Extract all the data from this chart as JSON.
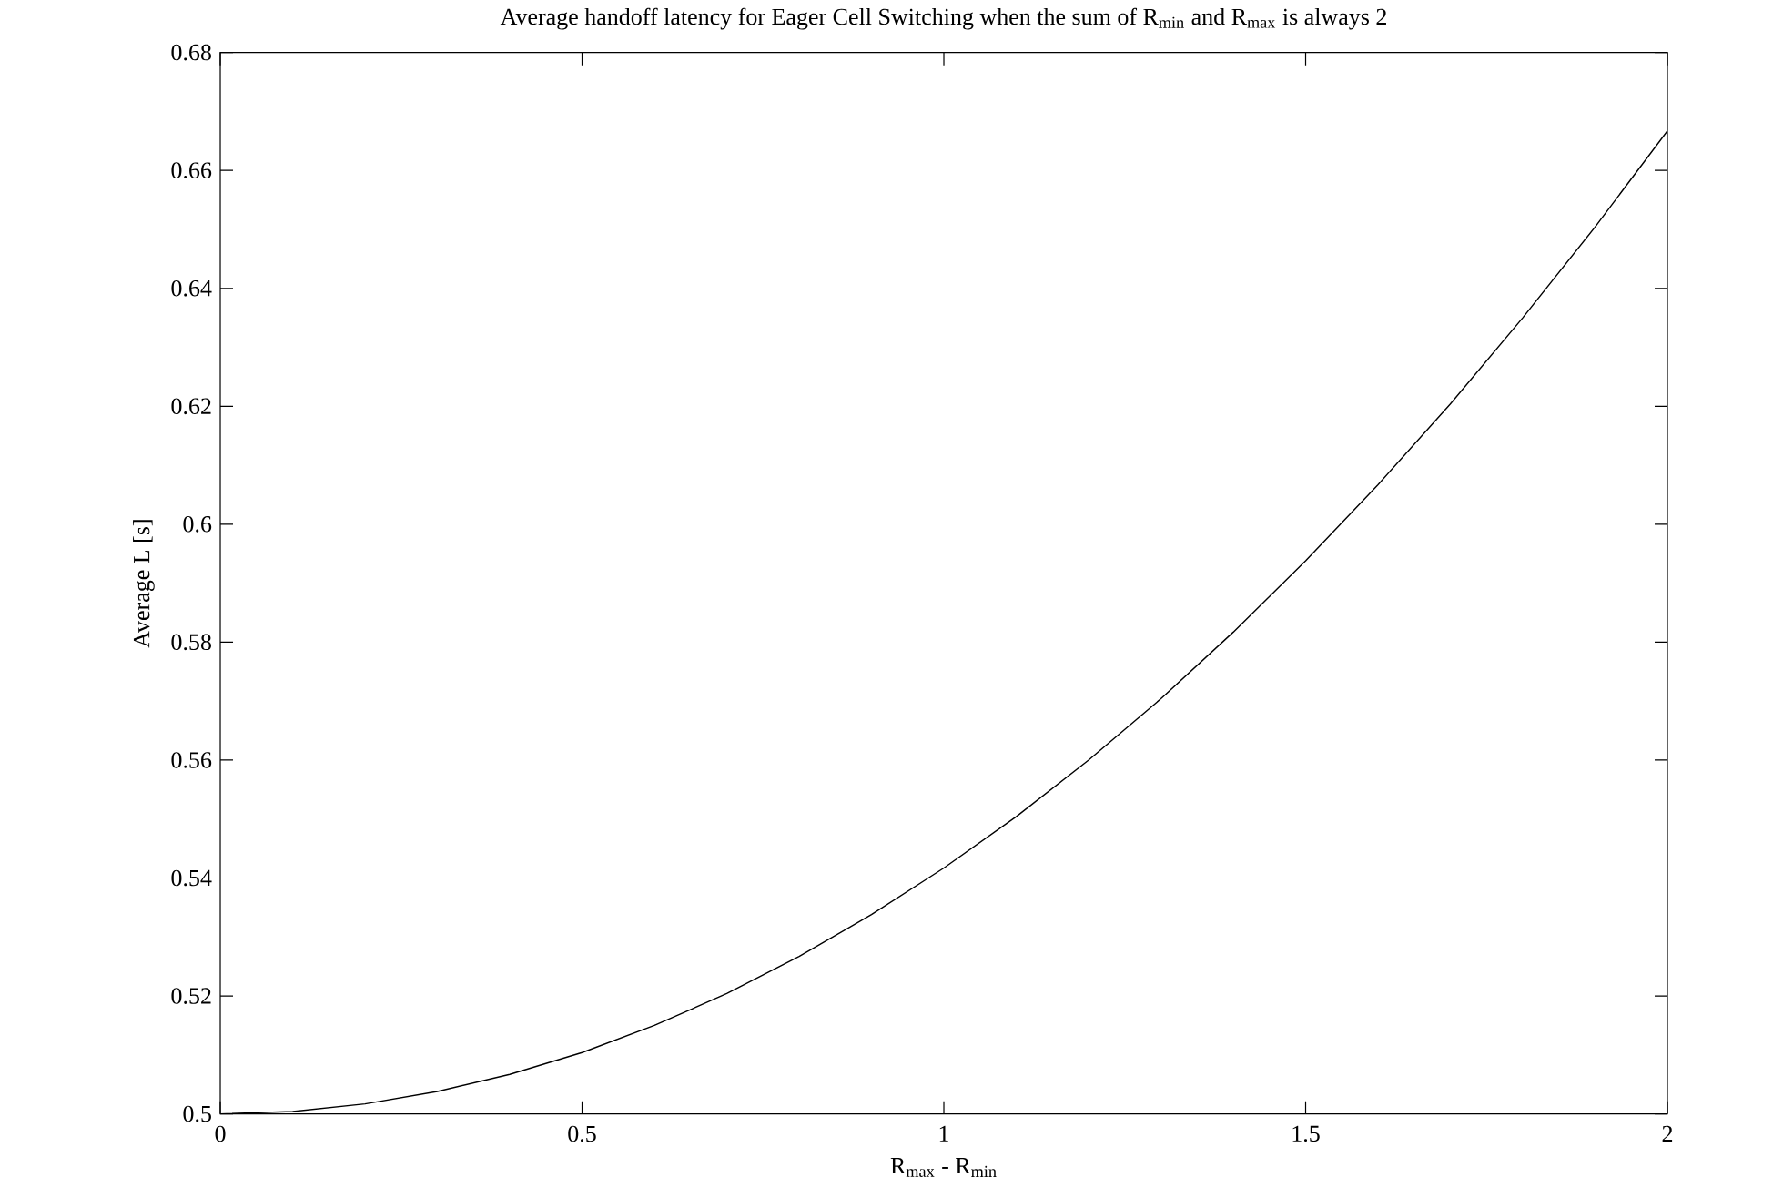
{
  "chart_data": {
    "type": "line",
    "title": "Average handoff latency for Eager Cell Switching when the sum of R$_{min}$ and R$_{max}$ is always 2",
    "xlabel": "R$_{max}$ - R$_{min}$",
    "ylabel": "Average L [s]",
    "x": [
      0,
      0.1,
      0.2,
      0.3,
      0.4,
      0.5,
      0.6,
      0.7,
      0.8,
      0.9,
      1,
      1.1,
      1.2,
      1.3,
      1.4,
      1.5,
      1.6,
      1.7,
      1.8,
      1.9,
      2
    ],
    "values": [
      0.5,
      0.5004,
      0.5017,
      0.5038,
      0.5067,
      0.5104,
      0.515,
      0.5204,
      0.5267,
      0.5338,
      0.5417,
      0.5504,
      0.56,
      0.5704,
      0.5817,
      0.5938,
      0.6067,
      0.6204,
      0.635,
      0.6504,
      0.6667
    ],
    "color": "#000000",
    "xlim": [
      0,
      2
    ],
    "ylim": [
      0.5,
      0.68
    ],
    "xticks": [
      0,
      0.5,
      1,
      1.5,
      2
    ],
    "yticks": [
      0.5,
      0.52,
      0.54,
      0.56,
      0.58,
      0.6,
      0.62,
      0.64,
      0.66,
      0.68
    ],
    "grid": false,
    "marker": "none",
    "line_style": "solid"
  }
}
